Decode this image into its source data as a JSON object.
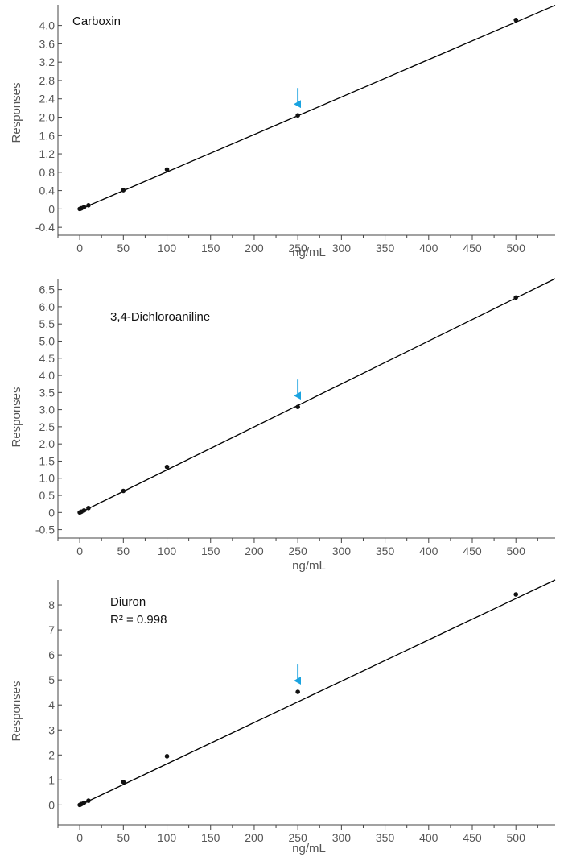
{
  "colors": {
    "axis": "#444444",
    "tick_label": "#555555",
    "fit_line": "#000000",
    "point": "#111111",
    "arrow": "#1aa3e0"
  },
  "chart_data": [
    {
      "type": "scatter",
      "title": "Carboxin",
      "xlabel": "ng/mL",
      "ylabel": "Responses",
      "xlim": [
        -25,
        545
      ],
      "ylim": [
        -0.45,
        4.45
      ],
      "xticks": [
        0,
        50,
        100,
        150,
        200,
        250,
        300,
        350,
        400,
        450,
        500
      ],
      "yticks": [
        -0.4,
        0,
        0.4,
        0.8,
        1.2,
        1.6,
        2.0,
        2.4,
        2.8,
        3.2,
        3.6,
        4.0
      ],
      "ytick_labels": [
        "-0.4",
        "0",
        "0.4",
        "0.8",
        "1.2",
        "1.6",
        "2.0",
        "2.4",
        "2.8",
        "3.2",
        "3.6",
        "4.0"
      ],
      "x": [
        0,
        1,
        2,
        5,
        10,
        50,
        100,
        250,
        500
      ],
      "y": [
        0.0,
        0.008,
        0.016,
        0.04,
        0.08,
        0.41,
        0.86,
        2.04,
        4.12
      ],
      "fit": {
        "x": [
          0,
          545
        ],
        "y": [
          -0.01,
          4.44
        ]
      },
      "arrow_at": {
        "x": 250,
        "y": 2.04
      },
      "annotations": [],
      "grid": false,
      "legend": "none"
    },
    {
      "type": "scatter",
      "title": "3,4-Dichloroaniline",
      "xlabel": "ng/mL",
      "ylabel": "Responses",
      "xlim": [
        -25,
        545
      ],
      "ylim": [
        -0.58,
        6.82
      ],
      "xticks": [
        0,
        50,
        100,
        150,
        200,
        250,
        300,
        350,
        400,
        450,
        500
      ],
      "yticks": [
        -0.5,
        0,
        0.5,
        1.0,
        1.5,
        2.0,
        2.5,
        3.0,
        3.5,
        4.0,
        4.5,
        5.0,
        5.5,
        6.0,
        6.5
      ],
      "ytick_labels": [
        "-0.5",
        "0",
        "0.5",
        "1.0",
        "1.5",
        "2.0",
        "2.5",
        "3.0",
        "3.5",
        "4.0",
        "4.5",
        "5.0",
        "5.5",
        "6.0",
        "6.5"
      ],
      "x": [
        0,
        1,
        2,
        5,
        10,
        50,
        100,
        250,
        500
      ],
      "y": [
        0.0,
        0.012,
        0.025,
        0.06,
        0.13,
        0.63,
        1.33,
        3.08,
        6.27
      ],
      "fit": {
        "x": [
          0,
          545
        ],
        "y": [
          -0.01,
          6.82
        ]
      },
      "arrow_at": {
        "x": 250,
        "y": 3.08
      },
      "annotations": [],
      "grid": false,
      "legend": "none"
    },
    {
      "type": "scatter",
      "title": "Diuron",
      "xlabel": "ng/mL",
      "ylabel": "Responses",
      "xlim": [
        -25,
        545
      ],
      "ylim": [
        -0.6,
        9.0
      ],
      "xticks": [
        0,
        50,
        100,
        150,
        200,
        250,
        300,
        350,
        400,
        450,
        500
      ],
      "yticks": [
        0,
        1,
        2,
        3,
        4,
        5,
        6,
        7,
        8
      ],
      "ytick_labels": [
        "0",
        "1",
        "2",
        "3",
        "4",
        "5",
        "6",
        "7",
        "8"
      ],
      "x": [
        0,
        1,
        2,
        5,
        10,
        50,
        100,
        250,
        500
      ],
      "y": [
        0.0,
        0.02,
        0.04,
        0.09,
        0.17,
        0.92,
        1.95,
        4.52,
        8.42
      ],
      "fit": {
        "x": [
          0,
          545
        ],
        "y": [
          -0.01,
          9.0
        ]
      },
      "arrow_at": {
        "x": 250,
        "y": 4.52
      },
      "annotations": [
        "R² = 0.998"
      ],
      "grid": false,
      "legend": "none"
    }
  ]
}
